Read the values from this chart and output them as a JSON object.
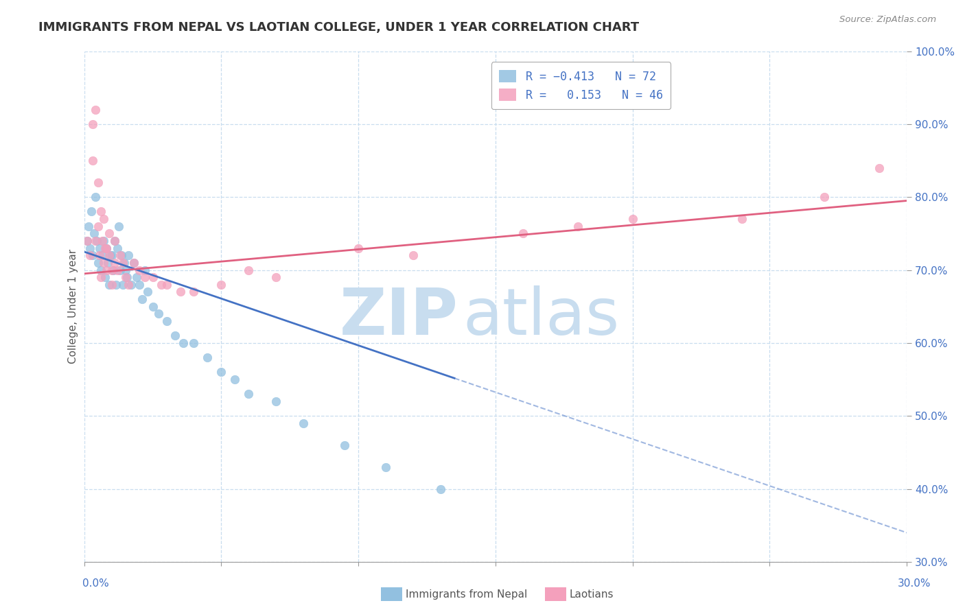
{
  "title": "IMMIGRANTS FROM NEPAL VS LAOTIAN COLLEGE, UNDER 1 YEAR CORRELATION CHART",
  "source": "Source: ZipAtlas.com",
  "ylabel": "College, Under 1 year",
  "xmin": 0.0,
  "xmax": 30.0,
  "ymin": 30.0,
  "ymax": 100.0,
  "nepal_color": "#92c0e0",
  "laotian_color": "#f4a0bc",
  "nepal_line_color": "#4472c4",
  "laotian_line_color": "#e06080",
  "watermark_zip": "ZIP",
  "watermark_atlas": "atlas",
  "watermark_color": "#c8ddef",
  "grid_color": "#c8ddef",
  "background_color": "#ffffff",
  "legend_nepal_color": "#92c0e0",
  "legend_laotian_color": "#f4a0bc",
  "nepal_line_x0": 0.0,
  "nepal_line_y0": 72.5,
  "nepal_line_x1": 30.0,
  "nepal_line_y1": 34.0,
  "nepal_solid_end_x": 13.5,
  "laotian_line_x0": 0.0,
  "laotian_line_y0": 69.5,
  "laotian_line_x1": 30.0,
  "laotian_line_y1": 79.5,
  "nepal_x": [
    0.1,
    0.15,
    0.2,
    0.25,
    0.3,
    0.35,
    0.4,
    0.45,
    0.5,
    0.55,
    0.6,
    0.65,
    0.7,
    0.75,
    0.8,
    0.85,
    0.9,
    0.95,
    1.0,
    1.05,
    1.1,
    1.15,
    1.2,
    1.25,
    1.3,
    1.35,
    1.4,
    1.45,
    1.5,
    1.55,
    1.6,
    1.7,
    1.8,
    1.9,
    2.0,
    2.1,
    2.2,
    2.3,
    2.5,
    2.7,
    3.0,
    3.3,
    3.6,
    4.0,
    4.5,
    5.0,
    5.5,
    6.0,
    7.0,
    8.0,
    9.5,
    11.0,
    13.0
  ],
  "nepal_y": [
    74,
    76,
    73,
    78,
    72,
    75,
    80,
    74,
    71,
    73,
    70,
    72,
    74,
    69,
    73,
    71,
    68,
    72,
    72,
    70,
    74,
    68,
    73,
    76,
    70,
    72,
    68,
    71,
    70,
    69,
    72,
    68,
    71,
    69,
    68,
    66,
    70,
    67,
    65,
    64,
    63,
    61,
    60,
    60,
    58,
    56,
    55,
    53,
    52,
    49,
    46,
    43,
    40
  ],
  "laotian_x": [
    0.1,
    0.2,
    0.3,
    0.4,
    0.5,
    0.55,
    0.6,
    0.65,
    0.7,
    0.75,
    0.8,
    0.9,
    1.0,
    1.1,
    1.2,
    1.3,
    1.5,
    1.8,
    2.2,
    2.8,
    3.5,
    5.0,
    7.0,
    12.0,
    16.0,
    20.0,
    24.0,
    29.0,
    0.3,
    0.5,
    0.7,
    0.9,
    1.1,
    1.4,
    2.0,
    3.0,
    6.0,
    10.0,
    18.0,
    27.0,
    0.4,
    0.6,
    0.8,
    1.0,
    1.6,
    2.5,
    4.0
  ],
  "laotian_y": [
    74,
    72,
    90,
    74,
    76,
    72,
    69,
    74,
    71,
    73,
    70,
    72,
    68,
    71,
    70,
    72,
    69,
    71,
    69,
    68,
    67,
    68,
    69,
    72,
    75,
    77,
    77,
    84,
    85,
    82,
    77,
    75,
    74,
    71,
    70,
    68,
    70,
    73,
    76,
    80,
    92,
    78,
    73,
    70,
    68,
    69,
    67
  ]
}
